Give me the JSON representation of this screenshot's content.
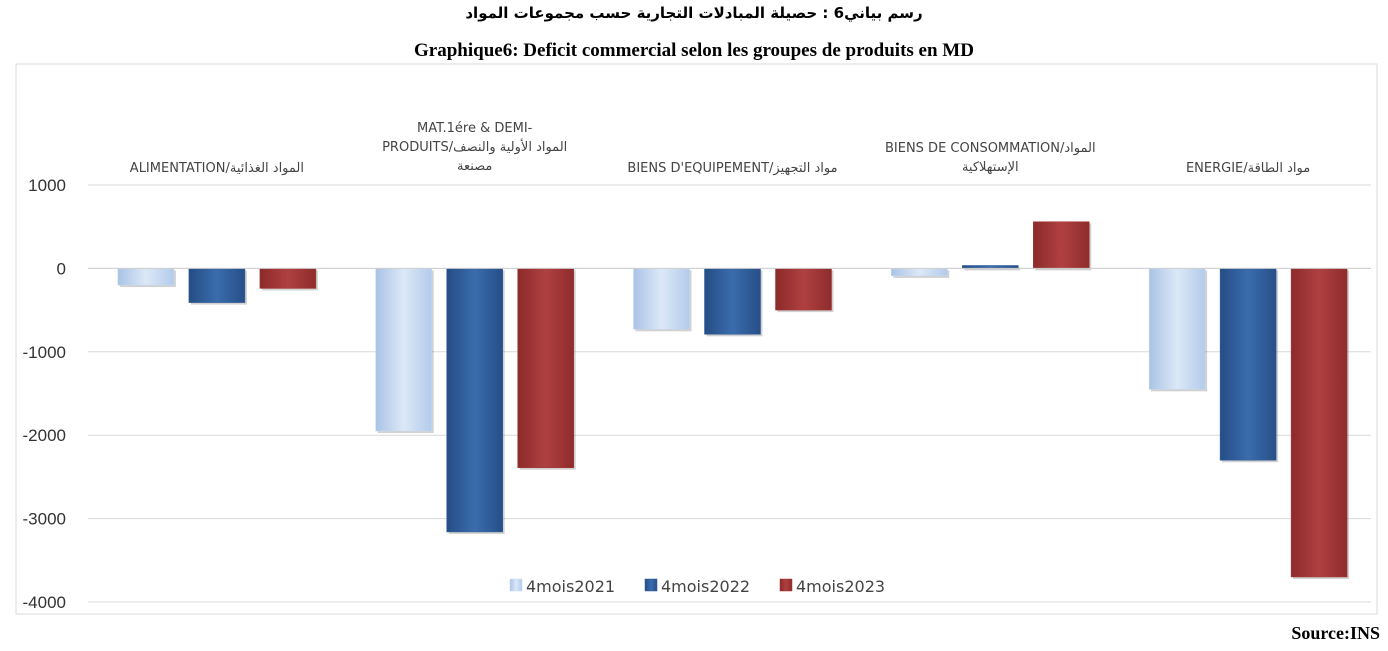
{
  "titles": {
    "arabic": "رسم بياني6 : حصيلة المبادلات التجارية حسب مجموعات المواد",
    "french": "Graphique6: Deficit commercial selon les groupes de produits en MD"
  },
  "source": "Source:INS",
  "chart_data": {
    "type": "bar",
    "categories": [
      [
        "ALIMENTATION/المواد الغذائية"
      ],
      [
        "MAT.1ére & DEMI-",
        "PRODUITS/المواد الأولية والنصف",
        "مصنعة"
      ],
      [
        "BIENS D'EQUIPEMENT/مواد التجهيز"
      ],
      [
        "BIENS DE CONSOMMATION/المواد",
        "الإستهلاكية"
      ],
      [
        "ENERGIE/مواد الطاقة"
      ]
    ],
    "series": [
      {
        "name": "4mois2021",
        "color": "#c6d9f1",
        "values": [
          -200,
          -1950,
          -730,
          -90,
          -1450
        ]
      },
      {
        "name": "4mois2022",
        "color": "#2f5d99",
        "values": [
          -410,
          -3160,
          -790,
          35,
          -2300
        ]
      },
      {
        "name": "4mois2023",
        "color": "#a23535",
        "values": [
          -240,
          -2390,
          -500,
          560,
          -3700
        ]
      }
    ],
    "ylim": [
      -4000,
      1000
    ],
    "yticks": [
      "1000",
      "0",
      "-1000",
      "-2000",
      "-3000",
      "-4000"
    ],
    "grid": true,
    "legend": "bottom-center"
  }
}
